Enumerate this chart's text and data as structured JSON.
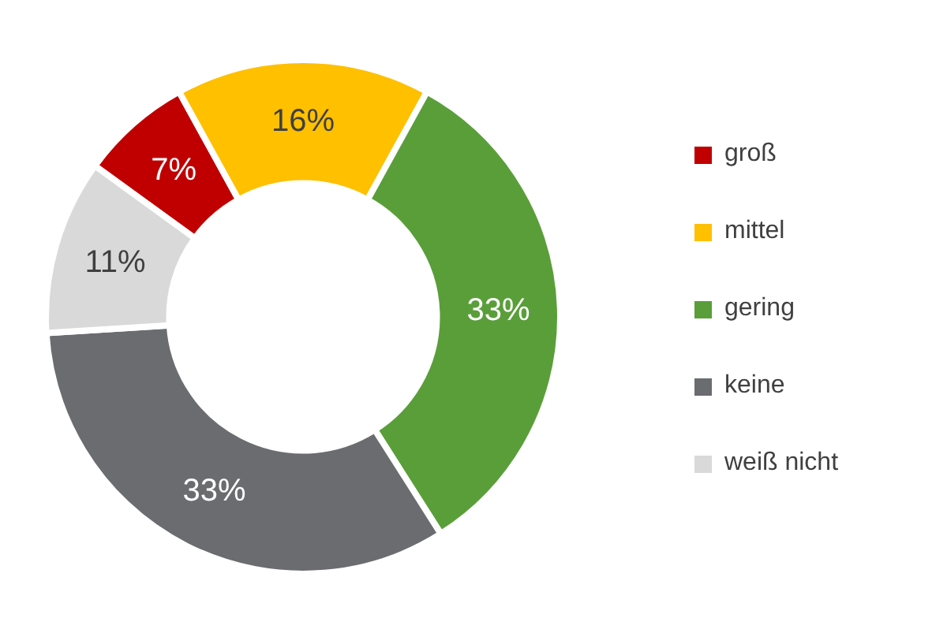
{
  "chart_data": {
    "type": "donut",
    "categories": [
      "groß",
      "mittel",
      "gering",
      "keine",
      "weiß nicht"
    ],
    "values": [
      7,
      16,
      33,
      33,
      11
    ],
    "colors": [
      "#c00000",
      "#ffc000",
      "#5a9e3a",
      "#6b6c70",
      "#d9d9d9"
    ],
    "value_labels": [
      "7%",
      "16%",
      "33%",
      "33%",
      "11%"
    ],
    "legend": "right"
  }
}
